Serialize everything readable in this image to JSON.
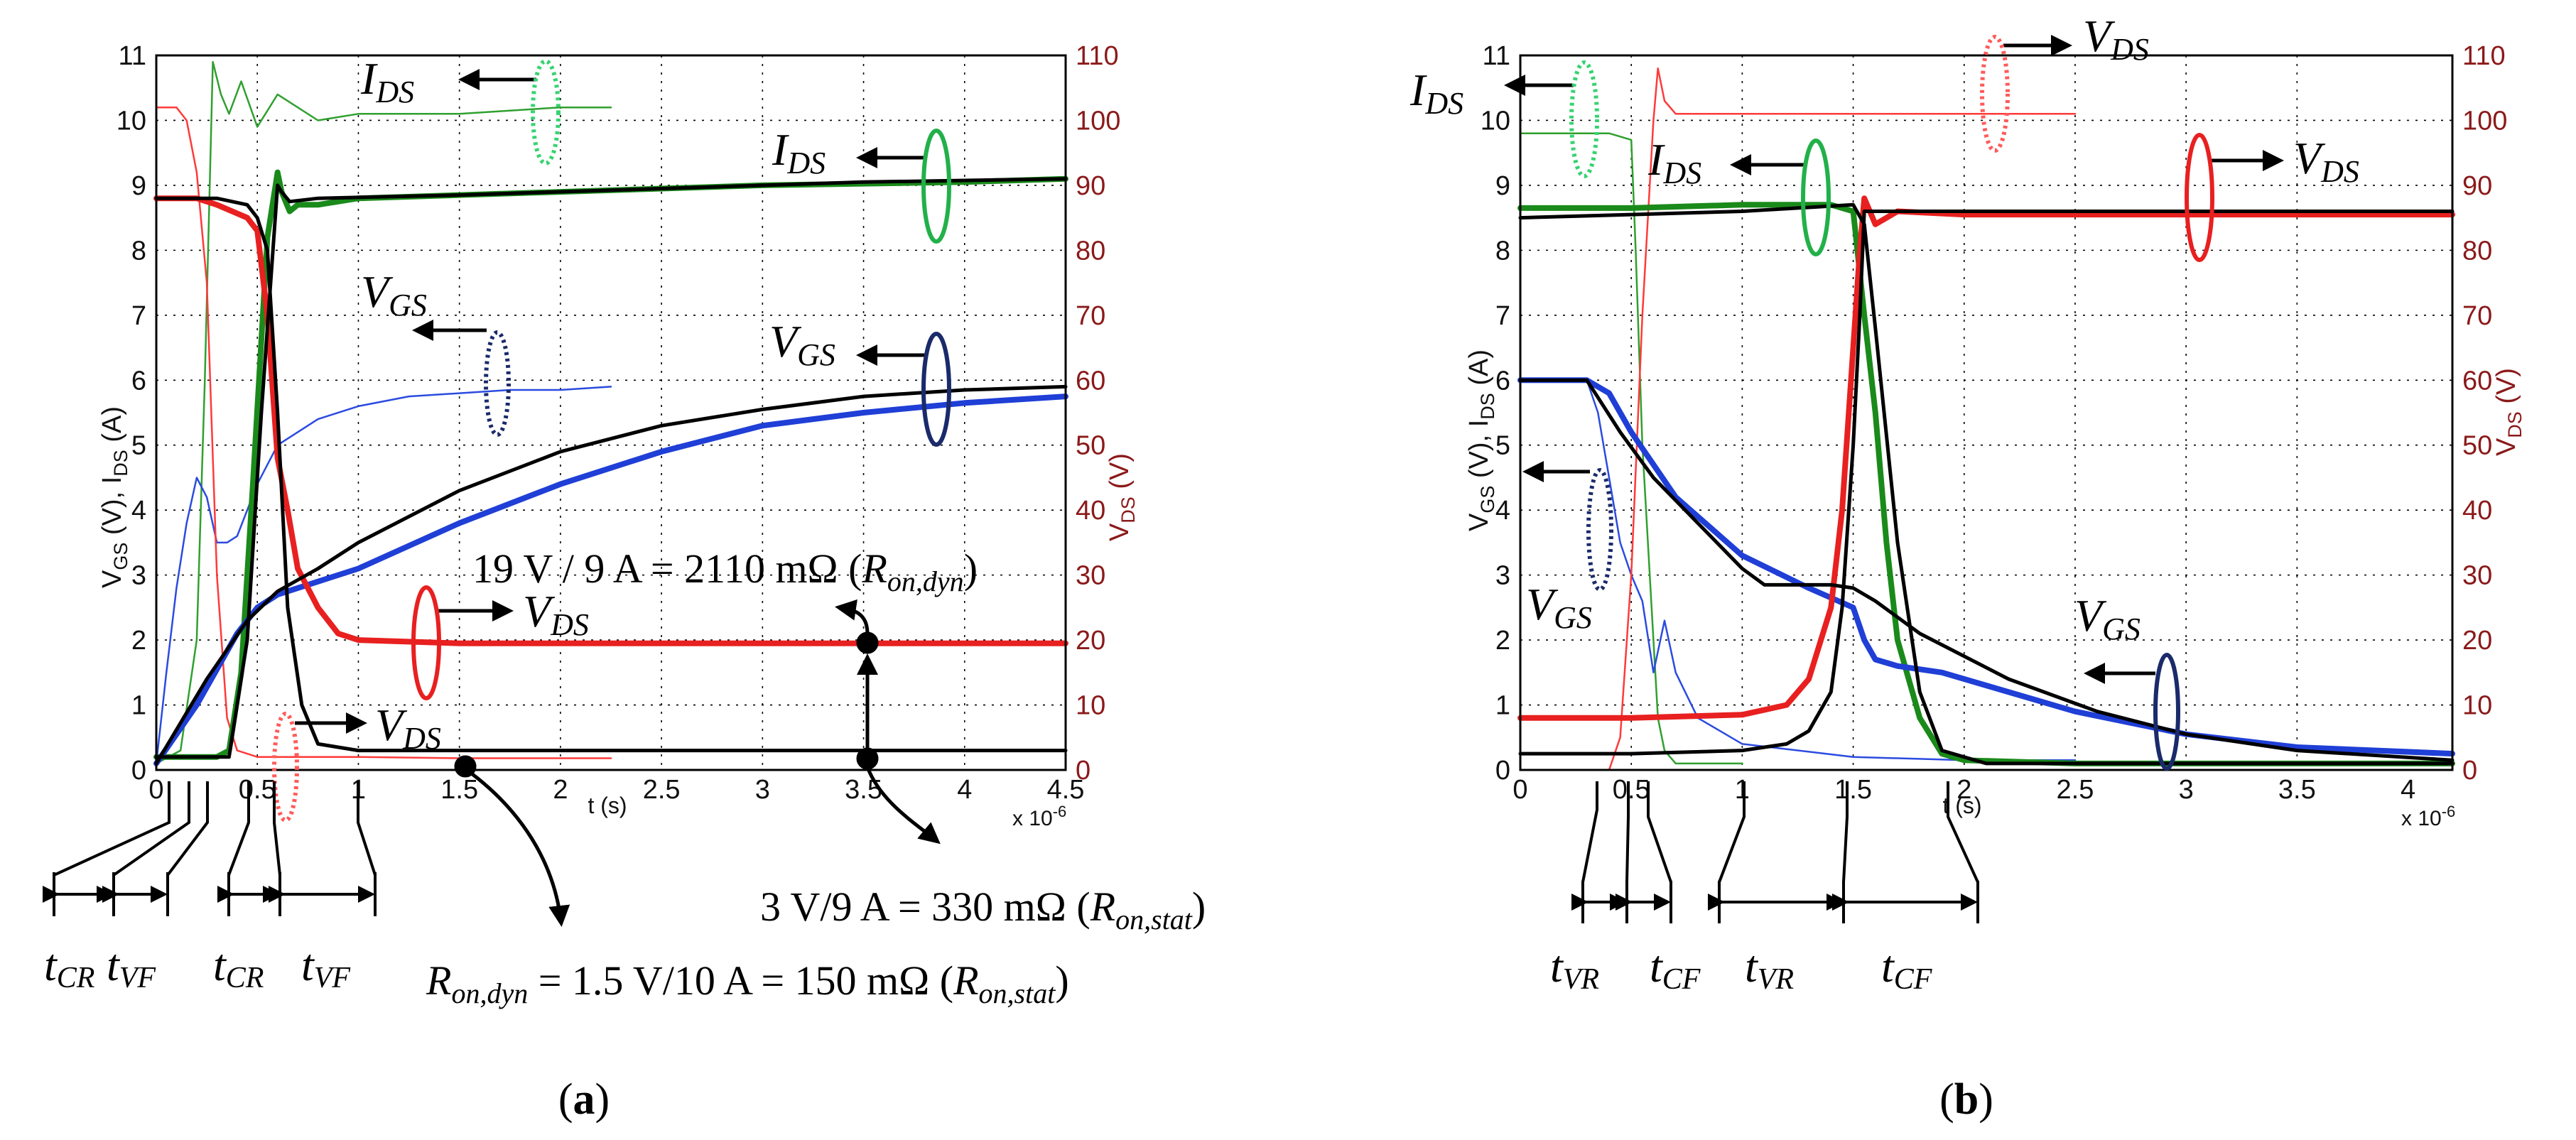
{
  "chart_data": [
    {
      "panel": "(a)",
      "type": "line",
      "title": "",
      "xlabel": "t (s)",
      "x_multiplier": "x 10",
      "x_multiplier_exp": "-6",
      "ylabel": "V",
      "ylabel_sub": "GS",
      "ylabel_mid": " (V), I",
      "ylabel_sub2": "DS",
      "ylabel_end": " (A)",
      "y2label": "V",
      "y2label_sub": "DS",
      "y2label_end": " (V)",
      "xlim": [
        0,
        4.5
      ],
      "ylim": [
        0,
        11
      ],
      "y2lim": [
        0,
        110
      ],
      "xticks": [
        "0",
        "0.5",
        "1",
        "1.5",
        "2",
        "2.5",
        "3",
        "3.5",
        "4",
        "4.5"
      ],
      "yticks": [
        "0",
        "1",
        "2",
        "3",
        "4",
        "5",
        "6",
        "7",
        "8",
        "9",
        "10",
        "11"
      ],
      "y2ticks": [
        "0",
        "10",
        "20",
        "30",
        "40",
        "50",
        "60",
        "70",
        "80",
        "90",
        "100",
        "110"
      ],
      "series": [
        {
          "name": "IDS measured (thick)",
          "color": "#1a8a1a",
          "axis": "left",
          "x": [
            0,
            0.18,
            0.3,
            0.36,
            0.42,
            0.48,
            0.55,
            0.6,
            0.62,
            0.66,
            0.7,
            0.8,
            1,
            2,
            3,
            4,
            4.5
          ],
          "y": [
            0.2,
            0.2,
            0.2,
            0.3,
            1.5,
            4.5,
            8.2,
            9.2,
            8.9,
            8.6,
            8.7,
            8.7,
            8.8,
            8.9,
            9,
            9.05,
            9.1
          ]
        },
        {
          "name": "IDS simulated (thin)",
          "color": "#2fa02f",
          "axis": "left",
          "x": [
            0,
            0.12,
            0.2,
            0.24,
            0.28,
            0.32,
            0.36,
            0.42,
            0.5,
            0.6,
            0.8,
            1,
            1.5,
            2,
            2.25
          ],
          "y": [
            0.1,
            0.3,
            2,
            6,
            10.9,
            10.4,
            10.1,
            10.6,
            9.9,
            10.4,
            10,
            10.1,
            10.1,
            10.2,
            10.2
          ]
        },
        {
          "name": "VGS measured (thick)",
          "color": "#1f3fd6",
          "axis": "left",
          "x": [
            0,
            0.2,
            0.4,
            0.5,
            0.6,
            0.7,
            1,
            1.5,
            2,
            2.5,
            3,
            3.5,
            4,
            4.5
          ],
          "y": [
            0.1,
            1,
            2.1,
            2.5,
            2.7,
            2.8,
            3.1,
            3.8,
            4.4,
            4.9,
            5.3,
            5.5,
            5.65,
            5.75
          ]
        },
        {
          "name": "VGS simulated (thin)",
          "color": "#2b4be0",
          "axis": "left",
          "x": [
            0,
            0.05,
            0.1,
            0.15,
            0.2,
            0.25,
            0.3,
            0.35,
            0.4,
            0.5,
            0.6,
            0.8,
            1,
            1.25,
            1.5,
            1.75,
            2,
            2.25
          ],
          "y": [
            0.1,
            1.5,
            2.8,
            3.8,
            4.5,
            4.2,
            3.5,
            3.5,
            3.6,
            4.4,
            5,
            5.4,
            5.6,
            5.75,
            5.8,
            5.85,
            5.85,
            5.9
          ]
        },
        {
          "name": "VGS model",
          "color": "#000000",
          "axis": "left",
          "x": [
            0,
            0.25,
            0.45,
            0.6,
            0.8,
            1,
            1.5,
            2,
            2.5,
            3,
            3.5,
            4,
            4.5
          ],
          "y": [
            0.1,
            1.4,
            2.3,
            2.75,
            3.1,
            3.5,
            4.3,
            4.9,
            5.3,
            5.55,
            5.75,
            5.85,
            5.9
          ]
        },
        {
          "name": "IDS model",
          "color": "#000000",
          "axis": "left",
          "x": [
            0,
            0.36,
            0.45,
            0.52,
            0.6,
            0.62,
            0.66,
            0.8,
            1.5,
            2.5,
            3.5,
            4.5
          ],
          "y": [
            0.2,
            0.2,
            2,
            5.5,
            9,
            8.9,
            8.75,
            8.8,
            8.85,
            8.95,
            9.05,
            9.1
          ]
        },
        {
          "name": "VDS measured (thick)",
          "color": "#e82020",
          "axis": "right",
          "x": [
            0,
            0.2,
            0.3,
            0.45,
            0.5,
            0.55,
            0.6,
            0.65,
            0.7,
            0.8,
            0.9,
            1,
            1.5,
            2,
            3,
            4,
            4.5
          ],
          "y": [
            88,
            88,
            87,
            85,
            83,
            70,
            48,
            40,
            31,
            25,
            21,
            20,
            19.5,
            19.5,
            19.5,
            19.5,
            19.5
          ]
        },
        {
          "name": "VDS simulated (thin)",
          "color": "#ff3a3a",
          "axis": "right",
          "x": [
            0,
            0.1,
            0.15,
            0.2,
            0.25,
            0.3,
            0.35,
            0.4,
            0.5,
            0.7,
            1,
            1.5,
            2,
            2.25
          ],
          "y": [
            102,
            102,
            100,
            92,
            75,
            30,
            8,
            3,
            2,
            2,
            2,
            1.8,
            1.8,
            1.8
          ]
        },
        {
          "name": "VDS model",
          "color": "#000000",
          "axis": "right",
          "x": [
            0,
            0.3,
            0.45,
            0.5,
            0.55,
            0.6,
            0.65,
            0.72,
            0.8,
            1,
            1.5,
            2,
            3,
            4.5
          ],
          "y": [
            88,
            88,
            87,
            85,
            80,
            55,
            25,
            10,
            4,
            3,
            3,
            3,
            3,
            3
          ]
        }
      ],
      "labels": {
        "ids_top": "I",
        "ids_top_sub": "DS",
        "ids_mid": "I",
        "ids_mid_sub": "DS",
        "vgs_top": "V",
        "vgs_top_sub": "GS",
        "vgs_mid": "V",
        "vgs_mid_sub": "GS",
        "vds_mid": "V",
        "vds_mid_sub": "DS",
        "vds_low": "V",
        "vds_low_sub": "DS",
        "dyn_line": "19 V / 9 A = 2110 mΩ (",
        "dyn_line_r": "R",
        "dyn_line_sub": "on,dyn",
        "dyn_line_close": ")",
        "stat_line": "3 V/9 A = 330 mΩ (",
        "stat_line_r": "R",
        "stat_line_sub": "on,stat",
        "stat_line_close": ")",
        "ron_line_r": "R",
        "ron_line_sub": "on,dyn",
        "ron_line": " = 1.5 V/10 A = 150 mΩ (",
        "ron_line_r2": "R",
        "ron_line_sub2": "on,stat",
        "ron_line_close": ")",
        "t_cr": "t",
        "t_cr_sub": "CR",
        "t_vf": "t",
        "t_vf_sub": "VF",
        "caption_open": "(",
        "caption_letter": "a",
        "caption_close": ")"
      }
    },
    {
      "panel": "(b)",
      "type": "line",
      "title": "",
      "xlabel": "t (s)",
      "x_multiplier": "x 10",
      "x_multiplier_exp": "-6",
      "ylabel": "V",
      "ylabel_sub": "GS",
      "ylabel_mid": " (V), I",
      "ylabel_sub2": "DS",
      "ylabel_end": " (A)",
      "y2label": "V",
      "y2label_sub": "DS",
      "y2label_end": " (V)",
      "xlim": [
        0,
        4.2
      ],
      "ylim": [
        0,
        11
      ],
      "y2lim": [
        0,
        110
      ],
      "xticks": [
        "0",
        "0.5",
        "1",
        "1.5",
        "2",
        "2.5",
        "3",
        "3.5",
        "4"
      ],
      "yticks": [
        "0",
        "1",
        "2",
        "3",
        "4",
        "5",
        "6",
        "7",
        "8",
        "9",
        "10",
        "11"
      ],
      "y2ticks": [
        "0",
        "10",
        "20",
        "30",
        "40",
        "50",
        "60",
        "70",
        "80",
        "90",
        "100",
        "110"
      ],
      "series": [
        {
          "name": "IDS measured (thick)",
          "color": "#1a8a1a",
          "axis": "left",
          "x": [
            0,
            0.5,
            1,
            1.4,
            1.5,
            1.55,
            1.6,
            1.65,
            1.7,
            1.8,
            1.9,
            2,
            2.5,
            3,
            4.2
          ],
          "y": [
            8.65,
            8.65,
            8.7,
            8.7,
            8.6,
            7,
            5.5,
            3.5,
            2,
            0.8,
            0.25,
            0.15,
            0.1,
            0.1,
            0.1
          ]
        },
        {
          "name": "IDS simulated (thin)",
          "color": "#2fa02f",
          "axis": "left",
          "x": [
            0,
            0.4,
            0.5,
            0.52,
            0.55,
            0.6,
            0.62,
            0.65,
            0.7,
            0.8,
            1
          ],
          "y": [
            9.8,
            9.8,
            9.7,
            8,
            5,
            2,
            0.8,
            0.3,
            0.1,
            0.1,
            0.1
          ]
        },
        {
          "name": "VGS measured (thick)",
          "color": "#1f3fd6",
          "axis": "left",
          "x": [
            0,
            0.3,
            0.4,
            0.5,
            0.7,
            1,
            1.3,
            1.5,
            1.55,
            1.6,
            1.7,
            1.9,
            2.1,
            2.5,
            3,
            3.5,
            4.2
          ],
          "y": [
            6,
            6,
            5.8,
            5.2,
            4.2,
            3.3,
            2.8,
            2.5,
            2,
            1.7,
            1.6,
            1.5,
            1.3,
            0.9,
            0.55,
            0.35,
            0.25
          ]
        },
        {
          "name": "VGS simulated (thin)",
          "color": "#2b4be0",
          "axis": "left",
          "x": [
            0,
            0.3,
            0.35,
            0.4,
            0.45,
            0.5,
            0.55,
            0.6,
            0.65,
            0.7,
            0.8,
            1,
            1.5,
            2,
            2.5
          ],
          "y": [
            6,
            6,
            5.5,
            4.5,
            3.5,
            3,
            2.6,
            1.5,
            2.3,
            1.5,
            0.8,
            0.4,
            0.2,
            0.15,
            0.15
          ]
        },
        {
          "name": "VGS model",
          "color": "#000000",
          "axis": "left",
          "x": [
            0,
            0.3,
            0.45,
            0.6,
            0.8,
            1,
            1.1,
            1.4,
            1.5,
            1.6,
            1.8,
            2.2,
            2.6,
            3,
            3.5,
            4.2
          ],
          "y": [
            6,
            6,
            5.2,
            4.5,
            3.8,
            3.1,
            2.85,
            2.85,
            2.8,
            2.6,
            2.1,
            1.4,
            0.9,
            0.55,
            0.3,
            0.15
          ]
        },
        {
          "name": "IDS model",
          "color": "#000000",
          "axis": "left",
          "x": [
            0,
            0.5,
            1,
            1.5,
            1.55,
            1.6,
            1.7,
            1.8,
            1.9,
            2.1,
            2.5,
            4.2
          ],
          "y": [
            8.5,
            8.55,
            8.6,
            8.7,
            8.4,
            6.8,
            3.5,
            1.2,
            0.3,
            0.1,
            0.1,
            0.1
          ]
        },
        {
          "name": "VDS measured (thick)",
          "color": "#e82020",
          "axis": "right",
          "x": [
            0,
            0.5,
            1,
            1.2,
            1.3,
            1.4,
            1.45,
            1.5,
            1.53,
            1.55,
            1.6,
            1.7,
            2,
            3,
            4.2
          ],
          "y": [
            8,
            8,
            8.5,
            10,
            14,
            25,
            40,
            65,
            80,
            88,
            84,
            86,
            85.5,
            85.5,
            85.5
          ]
        },
        {
          "name": "VDS simulated (thin)",
          "color": "#ff3a3a",
          "axis": "right",
          "x": [
            0,
            0.4,
            0.45,
            0.5,
            0.55,
            0.6,
            0.62,
            0.65,
            0.7,
            0.8,
            1,
            1.5,
            2,
            2.5
          ],
          "y": [
            0,
            0,
            5,
            30,
            70,
            100,
            108,
            103,
            101,
            101,
            101,
            101,
            101,
            101
          ]
        },
        {
          "name": "VDS model",
          "color": "#000000",
          "axis": "right",
          "x": [
            0,
            0.5,
            1,
            1.2,
            1.3,
            1.4,
            1.45,
            1.5,
            1.53,
            1.55,
            1.6,
            1.8,
            2.5,
            4.2
          ],
          "y": [
            2.5,
            2.5,
            3,
            4,
            6,
            12,
            25,
            50,
            70,
            86,
            86,
            86,
            86,
            86
          ]
        }
      ],
      "labels": {
        "ids_top": "I",
        "ids_top_sub": "DS",
        "ids_mid": "I",
        "ids_mid_sub": "DS",
        "vds_top": "V",
        "vds_top_sub": "DS",
        "vds_mid": "V",
        "vds_mid_sub": "DS",
        "vgs_left": "V",
        "vgs_left_sub": "GS",
        "vgs_right": "V",
        "vgs_right_sub": "GS",
        "t_vr": "t",
        "t_vr_sub": "VR",
        "t_cf": "t",
        "t_cf_sub": "CF",
        "caption_open": "(",
        "caption_letter": "b",
        "caption_close": ")"
      }
    }
  ]
}
